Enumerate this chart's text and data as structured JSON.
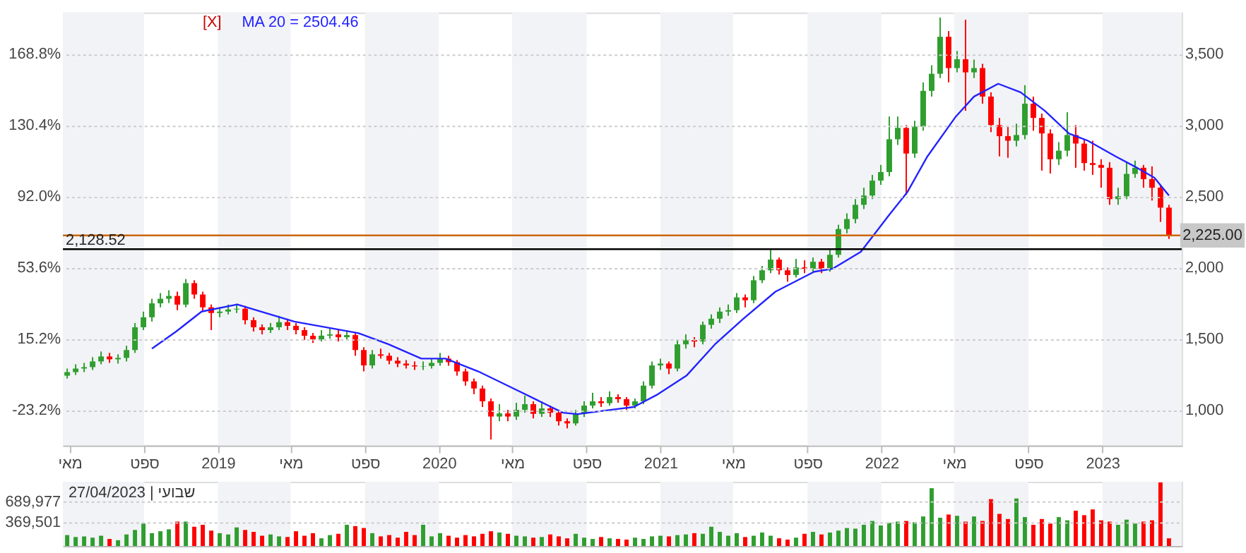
{
  "chart_data": [
    {
      "type": "candlestick",
      "x": [
        "2018-04-27",
        "2018-05-11",
        "2018-05-25",
        "2018-06-08",
        "2018-06-22",
        "2018-07-06",
        "2018-07-20",
        "2018-08-03",
        "2018-08-17",
        "2018-08-31",
        "2018-09-14",
        "2018-09-28",
        "2018-10-12",
        "2018-10-26",
        "2018-11-09",
        "2018-11-23",
        "2018-12-07",
        "2018-12-21",
        "2019-01-04",
        "2019-01-18",
        "2019-02-01",
        "2019-02-15",
        "2019-03-01",
        "2019-03-15",
        "2019-03-29",
        "2019-04-12",
        "2019-04-26",
        "2019-05-10",
        "2019-05-24",
        "2019-06-07",
        "2019-06-21",
        "2019-07-05",
        "2019-07-19",
        "2019-08-02",
        "2019-08-16",
        "2019-08-30",
        "2019-09-13",
        "2019-09-27",
        "2019-10-11",
        "2019-10-25",
        "2019-11-08",
        "2019-11-22",
        "2019-12-06",
        "2019-12-20",
        "2020-01-03",
        "2020-01-17",
        "2020-01-31",
        "2020-02-14",
        "2020-02-28",
        "2020-03-13",
        "2020-03-27",
        "2020-04-10",
        "2020-04-24",
        "2020-05-08",
        "2020-05-22",
        "2020-06-05",
        "2020-06-19",
        "2020-07-03",
        "2020-07-17",
        "2020-07-31",
        "2020-08-14",
        "2020-08-28",
        "2020-09-11",
        "2020-09-25",
        "2020-10-09",
        "2020-10-23",
        "2020-11-06",
        "2020-11-20",
        "2020-12-04",
        "2020-12-18",
        "2021-01-01",
        "2021-01-15",
        "2021-01-29",
        "2021-02-12",
        "2021-02-26",
        "2021-03-12",
        "2021-03-26",
        "2021-04-09",
        "2021-04-23",
        "2021-05-07",
        "2021-05-21",
        "2021-06-04",
        "2021-06-18",
        "2021-07-02",
        "2021-07-16",
        "2021-07-30",
        "2021-08-13",
        "2021-08-27",
        "2021-09-10",
        "2021-09-24",
        "2021-10-08",
        "2021-10-22",
        "2021-11-05",
        "2021-11-19",
        "2021-12-03",
        "2021-12-17",
        "2021-12-31",
        "2022-01-14",
        "2022-01-28",
        "2022-02-11",
        "2022-02-25",
        "2022-03-11",
        "2022-03-25",
        "2022-04-08",
        "2022-04-22",
        "2022-05-06",
        "2022-05-20",
        "2022-06-03",
        "2022-06-17",
        "2022-07-01",
        "2022-07-15",
        "2022-07-29",
        "2022-08-12",
        "2022-08-26",
        "2022-09-09",
        "2022-09-23",
        "2022-10-07",
        "2022-10-21",
        "2022-11-04",
        "2022-11-18",
        "2022-12-02",
        "2022-12-16",
        "2022-12-30",
        "2023-01-13",
        "2023-01-27",
        "2023-02-10",
        "2023-02-24",
        "2023-03-10",
        "2023-03-24",
        "2023-04-07",
        "2023-04-21"
      ],
      "xlim": [
        "2018-04-20",
        "2023-05-12"
      ],
      "xticks": [
        {
          "value": "2018-05-01",
          "label": "מאי"
        },
        {
          "value": "2018-09-01",
          "label": "ספט"
        },
        {
          "value": "2019-01-01",
          "label": "2019"
        },
        {
          "value": "2019-05-01",
          "label": "מאי"
        },
        {
          "value": "2019-09-01",
          "label": "ספט"
        },
        {
          "value": "2020-01-01",
          "label": "2020"
        },
        {
          "value": "2020-05-01",
          "label": "מאי"
        },
        {
          "value": "2020-09-01",
          "label": "ספט"
        },
        {
          "value": "2021-01-01",
          "label": "2021"
        },
        {
          "value": "2021-05-01",
          "label": "מאי"
        },
        {
          "value": "2021-09-01",
          "label": "ספט"
        },
        {
          "value": "2022-01-01",
          "label": "2022"
        },
        {
          "value": "2022-05-01",
          "label": "מאי"
        },
        {
          "value": "2022-09-01",
          "label": "ספט"
        },
        {
          "value": "2023-01-01",
          "label": "2023"
        }
      ],
      "ylim": [
        -42.4,
        191.1
      ],
      "yticks": [
        {
          "value": -23.2,
          "label": "-23.2%"
        },
        {
          "value": 15.2,
          "label": "15.2%"
        },
        {
          "value": 53.6,
          "label": "53.6%"
        },
        {
          "value": 92.0,
          "label": "92.0%"
        },
        {
          "value": 130.4,
          "label": "130.4%"
        },
        {
          "value": 168.8,
          "label": "168.8%"
        }
      ],
      "y2lim": [
        750,
        3790
      ],
      "y2ticks": [
        {
          "value": 1000,
          "label": "1,000"
        },
        {
          "value": 1500,
          "label": "1,500"
        },
        {
          "value": 2000,
          "label": "2,000"
        },
        {
          "value": 2500,
          "label": "2,500"
        },
        {
          "value": 3000,
          "label": "3,000"
        },
        {
          "value": 3500,
          "label": "3,500"
        }
      ],
      "series": [
        {
          "type": "candlestick",
          "axis": "y2",
          "ohlc": [
            [
              1240,
              1290,
              1220,
              1265
            ],
            [
              1265,
              1320,
              1245,
              1290
            ],
            [
              1290,
              1330,
              1265,
              1300
            ],
            [
              1300,
              1370,
              1280,
              1340
            ],
            [
              1340,
              1410,
              1320,
              1375
            ],
            [
              1375,
              1400,
              1330,
              1355
            ],
            [
              1355,
              1390,
              1325,
              1365
            ],
            [
              1365,
              1450,
              1340,
              1420
            ],
            [
              1420,
              1610,
              1400,
              1580
            ],
            [
              1580,
              1690,
              1560,
              1650
            ],
            [
              1650,
              1780,
              1620,
              1748
            ],
            [
              1748,
              1820,
              1720,
              1780
            ],
            [
              1780,
              1840,
              1750,
              1800
            ],
            [
              1800,
              1830,
              1700,
              1739
            ],
            [
              1739,
              1919,
              1720,
              1890
            ],
            [
              1890,
              1910,
              1780,
              1810
            ],
            [
              1810,
              1830,
              1690,
              1720
            ],
            [
              1720,
              1740,
              1560,
              1680
            ],
            [
              1680,
              1720,
              1650,
              1690
            ],
            [
              1690,
              1740,
              1670,
              1705
            ],
            [
              1705,
              1745,
              1680,
              1710
            ],
            [
              1710,
              1730,
              1600,
              1630
            ],
            [
              1630,
              1650,
              1550,
              1580
            ],
            [
              1580,
              1600,
              1530,
              1560
            ],
            [
              1560,
              1610,
              1540,
              1580
            ],
            [
              1580,
              1660,
              1560,
              1616
            ],
            [
              1616,
              1640,
              1560,
              1590
            ],
            [
              1590,
              1610,
              1530,
              1560
            ],
            [
              1560,
              1580,
              1490,
              1520
            ],
            [
              1520,
              1540,
              1470,
              1495
            ],
            [
              1495,
              1560,
              1480,
              1521
            ],
            [
              1521,
              1570,
              1500,
              1530
            ],
            [
              1530,
              1560,
              1480,
              1510
            ],
            [
              1510,
              1560,
              1490,
              1525
            ],
            [
              1525,
              1540,
              1380,
              1420
            ],
            [
              1420,
              1440,
              1270,
              1312
            ],
            [
              1312,
              1420,
              1290,
              1390
            ],
            [
              1390,
              1430,
              1360,
              1380
            ],
            [
              1380,
              1400,
              1320,
              1345
            ],
            [
              1345,
              1370,
              1300,
              1325
            ],
            [
              1325,
              1350,
              1290,
              1312
            ],
            [
              1312,
              1340,
              1280,
              1305
            ],
            [
              1305,
              1340,
              1280,
              1308
            ],
            [
              1308,
              1360,
              1290,
              1330
            ],
            [
              1330,
              1400,
              1310,
              1360
            ],
            [
              1360,
              1380,
              1310,
              1335
            ],
            [
              1335,
              1350,
              1240,
              1270
            ],
            [
              1270,
              1290,
              1170,
              1200
            ],
            [
              1200,
              1220,
              1110,
              1150
            ],
            [
              1150,
              1170,
              1020,
              1060
            ],
            [
              1060,
              1080,
              792,
              953
            ],
            [
              953,
              1040,
              920,
              975
            ],
            [
              975,
              1000,
              920,
              953
            ],
            [
              953,
              1050,
              930,
              1000
            ],
            [
              1000,
              1100,
              980,
              1040
            ],
            [
              1040,
              1060,
              940,
              972
            ],
            [
              972,
              1060,
              950,
              1010
            ],
            [
              1010,
              1030,
              950,
              980
            ],
            [
              980,
              1000,
              890,
              920
            ],
            [
              920,
              940,
              870,
              905
            ],
            [
              905,
              1000,
              890,
              972
            ],
            [
              972,
              1060,
              950,
              1030
            ],
            [
              1030,
              1120,
              1010,
              1060
            ],
            [
              1060,
              1090,
              1020,
              1047
            ],
            [
              1047,
              1130,
              1030,
              1090
            ],
            [
              1090,
              1110,
              1050,
              1075
            ],
            [
              1075,
              1090,
              1000,
              1030
            ],
            [
              1030,
              1080,
              1010,
              1060
            ],
            [
              1060,
              1200,
              1040,
              1170
            ],
            [
              1170,
              1340,
              1150,
              1312
            ],
            [
              1312,
              1360,
              1280,
              1325
            ],
            [
              1325,
              1340,
              1250,
              1290
            ],
            [
              1290,
              1490,
              1270,
              1460
            ],
            [
              1460,
              1530,
              1430,
              1490
            ],
            [
              1490,
              1510,
              1440,
              1480
            ],
            [
              1480,
              1620,
              1460,
              1597
            ],
            [
              1597,
              1670,
              1570,
              1640
            ],
            [
              1640,
              1720,
              1610,
              1690
            ],
            [
              1690,
              1740,
              1660,
              1700
            ],
            [
              1700,
              1820,
              1680,
              1790
            ],
            [
              1790,
              1810,
              1720,
              1770
            ],
            [
              1770,
              1940,
              1750,
              1910
            ],
            [
              1910,
              2010,
              1890,
              1980
            ],
            [
              1980,
              2130,
              1960,
              2055
            ],
            [
              2055,
              2070,
              1950,
              1980
            ],
            [
              1980,
              2000,
              1900,
              1947
            ],
            [
              1947,
              2060,
              1930,
              2000
            ],
            [
              2000,
              2050,
              1960,
              1990
            ],
            [
              1990,
              2070,
              1970,
              2040
            ],
            [
              2040,
              2060,
              1960,
              1990
            ],
            [
              1990,
              2130,
              1970,
              2089
            ],
            [
              2089,
              2300,
              2070,
              2270
            ],
            [
              2270,
              2380,
              2240,
              2340
            ],
            [
              2340,
              2480,
              2310,
              2440
            ],
            [
              2440,
              2560,
              2410,
              2505
            ],
            [
              2505,
              2650,
              2480,
              2610
            ],
            [
              2610,
              2720,
              2580,
              2670
            ],
            [
              2670,
              3060,
              2640,
              2900
            ],
            [
              2900,
              3060,
              2860,
              2980
            ],
            [
              2980,
              3000,
              2510,
              2800
            ],
            [
              2800,
              3030,
              2770,
              2989
            ],
            [
              2989,
              3300,
              2960,
              3240
            ],
            [
              3240,
              3420,
              3200,
              3360
            ],
            [
              3360,
              3755,
              3330,
              3620
            ],
            [
              3620,
              3660,
              3300,
              3400
            ],
            [
              3400,
              3520,
              3370,
              3462
            ],
            [
              3462,
              3740,
              3100,
              3370
            ],
            [
              3370,
              3460,
              3330,
              3400
            ],
            [
              3400,
              3430,
              3150,
              3200
            ],
            [
              3200,
              3230,
              2950,
              3000
            ],
            [
              3000,
              3050,
              2780,
              2922
            ],
            [
              2922,
              2990,
              2770,
              2890
            ],
            [
              2890,
              3010,
              2850,
              2930
            ],
            [
              2930,
              3280,
              2900,
              3150
            ],
            [
              3150,
              3200,
              2960,
              3050
            ],
            [
              3050,
              3080,
              2680,
              2941
            ],
            [
              2941,
              2970,
              2660,
              2760
            ],
            [
              2760,
              2880,
              2720,
              2820
            ],
            [
              2820,
              3090,
              2780,
              2930
            ],
            [
              2930,
              3000,
              2700,
              2870
            ],
            [
              2870,
              2900,
              2680,
              2733
            ],
            [
              2733,
              2890,
              2650,
              2720
            ],
            [
              2720,
              2760,
              2560,
              2700
            ],
            [
              2700,
              2740,
              2440,
              2480
            ],
            [
              2480,
              2560,
              2440,
              2500
            ],
            [
              2500,
              2740,
              2480,
              2657
            ],
            [
              2657,
              2750,
              2630,
              2700
            ],
            [
              2700,
              2720,
              2560,
              2620
            ],
            [
              2620,
              2710,
              2470,
              2560
            ],
            [
              2560,
              2580,
              2320,
              2420
            ],
            [
              2420,
              2440,
              2200,
              2225
            ]
          ],
          "colors": [
            "#2f9e2f",
            "#2f9e2f",
            "#2f9e2f",
            "#2f9e2f",
            "#2f9e2f",
            "#ff0000",
            "#2f9e2f",
            "#2f9e2f",
            "#2f9e2f",
            "#2f9e2f",
            "#2f9e2f",
            "#2f9e2f",
            "#2f9e2f",
            "#ff0000",
            "#2f9e2f",
            "#ff0000",
            "#ff0000",
            "#ff0000",
            "#2f9e2f",
            "#2f9e2f",
            "#2f9e2f",
            "#ff0000",
            "#ff0000",
            "#ff0000",
            "#2f9e2f",
            "#2f9e2f",
            "#ff0000",
            "#ff0000",
            "#ff0000",
            "#ff0000",
            "#2f9e2f",
            "#2f9e2f",
            "#ff0000",
            "#2f9e2f",
            "#ff0000",
            "#ff0000",
            "#2f9e2f",
            "#ff0000",
            "#ff0000",
            "#ff0000",
            "#ff0000",
            "#ff0000",
            "#2f9e2f",
            "#2f9e2f",
            "#2f9e2f",
            "#ff0000",
            "#ff0000",
            "#ff0000",
            "#ff0000",
            "#ff0000",
            "#ff0000",
            "#2f9e2f",
            "#ff0000",
            "#2f9e2f",
            "#2f9e2f",
            "#ff0000",
            "#2f9e2f",
            "#ff0000",
            "#ff0000",
            "#ff0000",
            "#2f9e2f",
            "#2f9e2f",
            "#2f9e2f",
            "#ff0000",
            "#2f9e2f",
            "#ff0000",
            "#ff0000",
            "#2f9e2f",
            "#2f9e2f",
            "#2f9e2f",
            "#2f9e2f",
            "#ff0000",
            "#2f9e2f",
            "#2f9e2f",
            "#ff0000",
            "#2f9e2f",
            "#2f9e2f",
            "#2f9e2f",
            "#2f9e2f",
            "#2f9e2f",
            "#ff0000",
            "#2f9e2f",
            "#2f9e2f",
            "#2f9e2f",
            "#ff0000",
            "#ff0000",
            "#2f9e2f",
            "#ff0000",
            "#2f9e2f",
            "#ff0000",
            "#2f9e2f",
            "#2f9e2f",
            "#2f9e2f",
            "#2f9e2f",
            "#2f9e2f",
            "#2f9e2f",
            "#2f9e2f",
            "#2f9e2f",
            "#2f9e2f",
            "#ff0000",
            "#2f9e2f",
            "#2f9e2f",
            "#2f9e2f",
            "#2f9e2f",
            "#ff0000",
            "#2f9e2f",
            "#ff0000",
            "#2f9e2f",
            "#ff0000",
            "#ff0000",
            "#ff0000",
            "#ff0000",
            "#2f9e2f",
            "#2f9e2f",
            "#ff0000",
            "#ff0000",
            "#ff0000",
            "#2f9e2f",
            "#2f9e2f",
            "#ff0000",
            "#ff0000",
            "#ff0000",
            "#ff0000",
            "#ff0000",
            "#2f9e2f",
            "#2f9e2f",
            "#2f9e2f",
            "#ff0000",
            "#ff0000",
            "#ff0000",
            "#ff0000"
          ]
        },
        {
          "type": "line",
          "name": "MA 20 = 2504.46",
          "color": "#2222ff",
          "axis": "y2",
          "x": [
            "2018-09-14",
            "2018-10-24",
            "2018-12-05",
            "2019-02-02",
            "2019-05-07",
            "2019-08-20",
            "2019-10-10",
            "2019-12-03",
            "2020-01-12",
            "2020-03-06",
            "2020-05-08",
            "2020-07-24",
            "2020-08-17",
            "2020-10-10",
            "2020-11-18",
            "2020-12-28",
            "2021-02-13",
            "2021-04-01",
            "2021-05-18",
            "2021-07-10",
            "2021-09-12",
            "2021-10-12",
            "2021-11-28",
            "2022-01-14",
            "2022-02-13",
            "2022-03-18",
            "2022-05-04",
            "2022-06-03",
            "2022-07-13",
            "2022-08-19",
            "2022-09-28",
            "2022-11-07",
            "2022-12-08",
            "2023-01-23",
            "2023-02-23",
            "2023-03-28",
            "2023-04-21"
          ],
          "values": [
            1430,
            1550,
            1690,
            1740,
            1620,
            1540,
            1460,
            1360,
            1360,
            1270,
            1140,
            980,
            970,
            1000,
            1020,
            1110,
            1240,
            1460,
            1640,
            1830,
            1970,
            1990,
            2110,
            2370,
            2530,
            2780,
            3060,
            3200,
            3290,
            3230,
            3100,
            2940,
            2890,
            2780,
            2710,
            2630,
            2504.46
          ]
        }
      ],
      "ref_lines": [
        {
          "axis": "y2",
          "value": 2225,
          "label": "2,225.00",
          "color": "#cc6600"
        },
        {
          "axis": "y2",
          "value": 2128.52,
          "label": "2,128.52",
          "color": "#000000"
        }
      ],
      "bands": [
        {
          "axis": "x",
          "from": "2018-04-20",
          "to": "2018-09-01",
          "color": "#f2f3f6"
        },
        {
          "axis": "x",
          "from": "2019-01-01",
          "to": "2019-05-01",
          "color": "#f2f3f6"
        },
        {
          "axis": "x",
          "from": "2019-09-01",
          "to": "2020-01-01",
          "color": "#f2f3f6"
        },
        {
          "axis": "x",
          "from": "2020-05-01",
          "to": "2020-09-01",
          "color": "#f2f3f6"
        },
        {
          "axis": "x",
          "from": "2021-01-01",
          "to": "2021-05-01",
          "color": "#f2f3f6"
        },
        {
          "axis": "x",
          "from": "2021-09-01",
          "to": "2022-01-01",
          "color": "#f2f3f6"
        },
        {
          "axis": "x",
          "from": "2022-05-01",
          "to": "2022-09-01",
          "color": "#f2f3f6"
        },
        {
          "axis": "x",
          "from": "2023-01-01",
          "to": "2023-05-12",
          "color": "#f2f3f6"
        }
      ],
      "annotations": [
        "[X]"
      ],
      "grid": "y",
      "legend": "top"
    },
    {
      "type": "bar",
      "x": [
        "2018-04-27",
        "2018-05-11",
        "2018-05-25",
        "2018-06-08",
        "2018-06-22",
        "2018-07-06",
        "2018-07-20",
        "2018-08-03",
        "2018-08-17",
        "2018-08-31",
        "2018-09-14",
        "2018-09-28",
        "2018-10-12",
        "2018-10-26",
        "2018-11-09",
        "2018-11-23",
        "2018-12-07",
        "2018-12-21",
        "2019-01-04",
        "2019-01-18",
        "2019-02-01",
        "2019-02-15",
        "2019-03-01",
        "2019-03-15",
        "2019-03-29",
        "2019-04-12",
        "2019-04-26",
        "2019-05-10",
        "2019-05-24",
        "2019-06-07",
        "2019-06-21",
        "2019-07-05",
        "2019-07-19",
        "2019-08-02",
        "2019-08-16",
        "2019-08-30",
        "2019-09-13",
        "2019-09-27",
        "2019-10-11",
        "2019-10-25",
        "2019-11-08",
        "2019-11-22",
        "2019-12-06",
        "2019-12-20",
        "2020-01-03",
        "2020-01-17",
        "2020-01-31",
        "2020-02-14",
        "2020-02-28",
        "2020-03-13",
        "2020-03-27",
        "2020-04-10",
        "2020-04-24",
        "2020-05-08",
        "2020-05-22",
        "2020-06-05",
        "2020-06-19",
        "2020-07-03",
        "2020-07-17",
        "2020-07-31",
        "2020-08-14",
        "2020-08-28",
        "2020-09-11",
        "2020-09-25",
        "2020-10-09",
        "2020-10-23",
        "2020-11-06",
        "2020-11-20",
        "2020-12-04",
        "2020-12-18",
        "2021-01-01",
        "2021-01-15",
        "2021-01-29",
        "2021-02-12",
        "2021-02-26",
        "2021-03-12",
        "2021-03-26",
        "2021-04-09",
        "2021-04-23",
        "2021-05-07",
        "2021-05-21",
        "2021-06-04",
        "2021-06-18",
        "2021-07-02",
        "2021-07-16",
        "2021-07-30",
        "2021-08-13",
        "2021-08-27",
        "2021-09-10",
        "2021-09-24",
        "2021-10-08",
        "2021-10-22",
        "2021-11-05",
        "2021-11-19",
        "2021-12-03",
        "2021-12-17",
        "2021-12-31",
        "2022-01-14",
        "2022-01-28",
        "2022-02-11",
        "2022-02-25",
        "2022-03-11",
        "2022-03-25",
        "2022-04-08",
        "2022-04-22",
        "2022-05-06",
        "2022-05-20",
        "2022-06-03",
        "2022-06-17",
        "2022-07-01",
        "2022-07-15",
        "2022-07-29",
        "2022-08-12",
        "2022-08-26",
        "2022-09-09",
        "2022-09-23",
        "2022-10-07",
        "2022-10-21",
        "2022-11-04",
        "2022-11-18",
        "2022-12-02",
        "2022-12-16",
        "2022-12-30",
        "2023-01-13",
        "2023-01-27",
        "2023-02-10",
        "2023-02-24",
        "2023-03-10",
        "2023-03-24",
        "2023-04-07",
        "2023-04-21"
      ],
      "xlim": [
        "2018-04-20",
        "2023-05-12"
      ],
      "values": [
        170000,
        140000,
        150000,
        130000,
        160000,
        110000,
        90000,
        180000,
        250000,
        350000,
        200000,
        230000,
        260000,
        380000,
        380000,
        300000,
        330000,
        240000,
        200000,
        180000,
        290000,
        250000,
        220000,
        160000,
        180000,
        150000,
        140000,
        230000,
        160000,
        200000,
        120000,
        170000,
        190000,
        330000,
        310000,
        280000,
        200000,
        150000,
        170000,
        130000,
        220000,
        170000,
        330000,
        150000,
        200000,
        160000,
        130000,
        170000,
        150000,
        190000,
        230000,
        210000,
        190000,
        160000,
        150000,
        130000,
        140000,
        180000,
        150000,
        120000,
        190000,
        130000,
        110000,
        140000,
        120000,
        110000,
        100000,
        130000,
        110000,
        150000,
        160000,
        150000,
        170000,
        180000,
        200000,
        190000,
        300000,
        220000,
        160000,
        200000,
        140000,
        160000,
        210000,
        160000,
        120000,
        100000,
        130000,
        190000,
        220000,
        180000,
        210000,
        240000,
        280000,
        270000,
        330000,
        390000,
        320000,
        360000,
        380000,
        390000,
        370000,
        460000,
        900000,
        440000,
        490000,
        470000,
        380000,
        460000,
        390000,
        730000,
        500000,
        420000,
        740000,
        450000,
        330000,
        420000,
        350000,
        450000,
        400000,
        550000,
        480000,
        570000,
        400000,
        380000,
        330000,
        410000,
        350000,
        380000,
        400000,
        990000,
        120000
      ],
      "colors": [
        "#2f9e2f",
        "#2f9e2f",
        "#2f9e2f",
        "#2f9e2f",
        "#2f9e2f",
        "#ff0000",
        "#2f9e2f",
        "#2f9e2f",
        "#2f9e2f",
        "#2f9e2f",
        "#2f9e2f",
        "#2f9e2f",
        "#2f9e2f",
        "#ff0000",
        "#2f9e2f",
        "#ff0000",
        "#ff0000",
        "#ff0000",
        "#2f9e2f",
        "#2f9e2f",
        "#2f9e2f",
        "#ff0000",
        "#ff0000",
        "#ff0000",
        "#2f9e2f",
        "#2f9e2f",
        "#ff0000",
        "#ff0000",
        "#ff0000",
        "#ff0000",
        "#2f9e2f",
        "#2f9e2f",
        "#ff0000",
        "#2f9e2f",
        "#ff0000",
        "#ff0000",
        "#2f9e2f",
        "#ff0000",
        "#ff0000",
        "#ff0000",
        "#ff0000",
        "#ff0000",
        "#2f9e2f",
        "#2f9e2f",
        "#2f9e2f",
        "#ff0000",
        "#ff0000",
        "#ff0000",
        "#ff0000",
        "#ff0000",
        "#ff0000",
        "#2f9e2f",
        "#ff0000",
        "#2f9e2f",
        "#2f9e2f",
        "#ff0000",
        "#2f9e2f",
        "#ff0000",
        "#ff0000",
        "#ff0000",
        "#2f9e2f",
        "#2f9e2f",
        "#2f9e2f",
        "#ff0000",
        "#2f9e2f",
        "#ff0000",
        "#ff0000",
        "#2f9e2f",
        "#2f9e2f",
        "#2f9e2f",
        "#2f9e2f",
        "#ff0000",
        "#2f9e2f",
        "#2f9e2f",
        "#ff0000",
        "#2f9e2f",
        "#2f9e2f",
        "#2f9e2f",
        "#2f9e2f",
        "#2f9e2f",
        "#ff0000",
        "#2f9e2f",
        "#2f9e2f",
        "#2f9e2f",
        "#ff0000",
        "#ff0000",
        "#2f9e2f",
        "#ff0000",
        "#2f9e2f",
        "#ff0000",
        "#2f9e2f",
        "#2f9e2f",
        "#2f9e2f",
        "#2f9e2f",
        "#2f9e2f",
        "#2f9e2f",
        "#2f9e2f",
        "#2f9e2f",
        "#2f9e2f",
        "#ff0000",
        "#2f9e2f",
        "#2f9e2f",
        "#2f9e2f",
        "#2f9e2f",
        "#ff0000",
        "#2f9e2f",
        "#ff0000",
        "#2f9e2f",
        "#ff0000",
        "#ff0000",
        "#ff0000",
        "#ff0000",
        "#2f9e2f",
        "#2f9e2f",
        "#ff0000",
        "#ff0000",
        "#ff0000",
        "#2f9e2f",
        "#2f9e2f",
        "#ff0000",
        "#ff0000",
        "#ff0000",
        "#ff0000",
        "#ff0000",
        "#2f9e2f",
        "#2f9e2f",
        "#2f9e2f",
        "#ff0000",
        "#ff0000",
        "#ff0000",
        "#ff0000"
      ],
      "ylim": [
        0,
        1000000
      ],
      "yticks": [
        {
          "value": 369501,
          "label": "369,501"
        },
        {
          "value": 689977,
          "label": "689,977"
        }
      ],
      "bands": [
        {
          "axis": "x",
          "from": "2018-04-20",
          "to": "2018-09-01",
          "color": "#f2f3f6"
        },
        {
          "axis": "x",
          "from": "2019-01-01",
          "to": "2019-05-01",
          "color": "#f2f3f6"
        },
        {
          "axis": "x",
          "from": "2019-09-01",
          "to": "2020-01-01",
          "color": "#f2f3f6"
        },
        {
          "axis": "x",
          "from": "2020-05-01",
          "to": "2020-09-01",
          "color": "#f2f3f6"
        },
        {
          "axis": "x",
          "from": "2021-01-01",
          "to": "2021-05-01",
          "color": "#f2f3f6"
        },
        {
          "axis": "x",
          "from": "2021-09-01",
          "to": "2022-01-01",
          "color": "#f2f3f6"
        },
        {
          "axis": "x",
          "from": "2022-05-01",
          "to": "2022-09-01",
          "color": "#f2f3f6"
        },
        {
          "axis": "x",
          "from": "2023-01-01",
          "to": "2023-05-12",
          "color": "#f2f3f6"
        }
      ],
      "annotations": [
        "27/04/2023 | שבועי"
      ],
      "grid": "y",
      "tick_labels": "y"
    }
  ]
}
